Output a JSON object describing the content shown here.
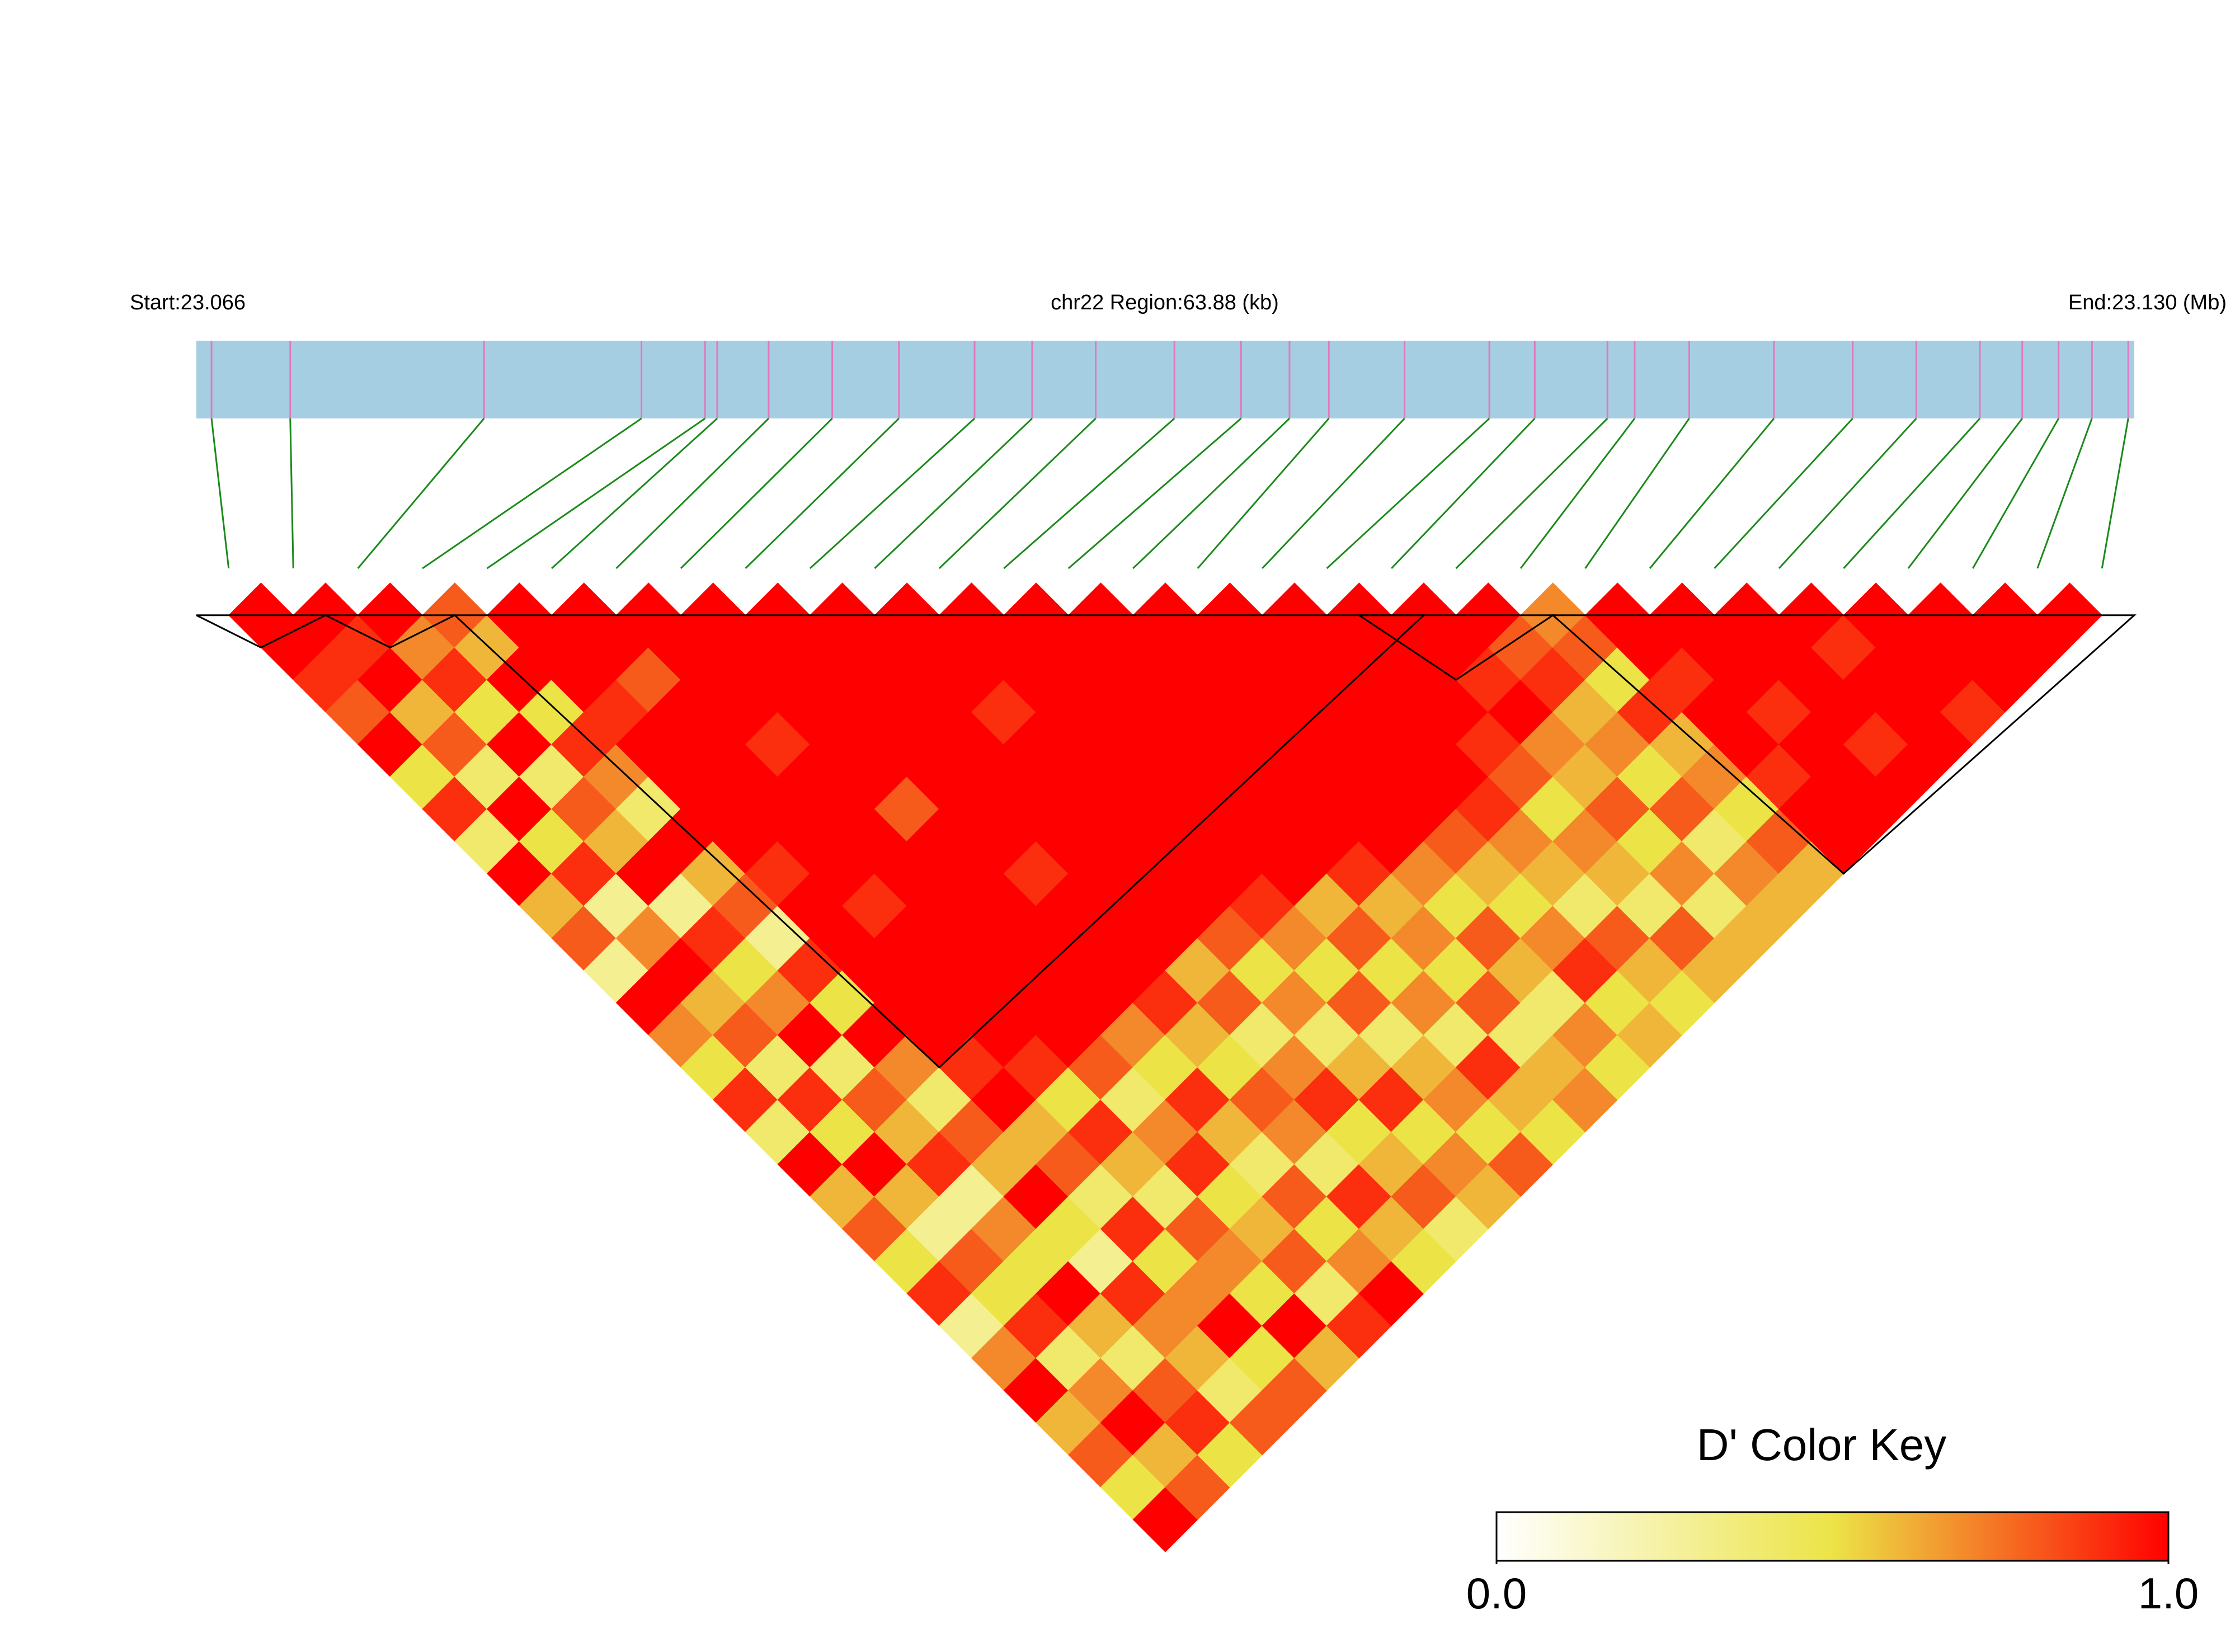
{
  "chart_data": {
    "type": "ld-heatmap",
    "start_label": "Start:23.066",
    "region_label": "chr22 Region:63.88 (kb)",
    "end_label": "End:23.130 (Mb)",
    "key_title": "D' Color Key",
    "xlim": [
      23.066,
      23.13
    ],
    "positions": [
      23.0665,
      23.0691,
      23.0755,
      23.0807,
      23.0828,
      23.0832,
      23.0849,
      23.087,
      23.0892,
      23.0917,
      23.0936,
      23.0957,
      23.0983,
      23.1005,
      23.1021,
      23.1034,
      23.1059,
      23.1087,
      23.1102,
      23.1126,
      23.1135,
      23.1153,
      23.1181,
      23.1207,
      23.1228,
      23.1249,
      23.1263,
      23.1275,
      23.1286,
      23.1298
    ],
    "colors": [
      "#ffffff",
      "#ece447",
      "#ff0000"
    ],
    "key_lim": [
      0,
      1
    ],
    "key_ticks": [
      {
        "value": 0,
        "label": "0.0"
      },
      {
        "value": 1,
        "label": "1.0"
      }
    ],
    "blocks": [
      [
        0,
        1
      ],
      [
        2,
        3
      ],
      [
        4,
        18
      ],
      [
        18,
        20
      ],
      [
        21,
        29
      ]
    ],
    "matrix": [
      [
        1,
        1,
        0.9,
        0.8,
        1,
        0.5,
        0.9,
        0.4,
        1,
        0.6,
        0.8,
        0.3,
        1,
        0.7,
        0.5,
        0.9,
        0.4,
        1,
        0.6,
        0.8,
        0.5,
        0.9,
        0.3,
        0.7,
        1,
        0.6,
        0.8,
        0.5,
        1
      ],
      [
        1,
        0.9,
        1,
        0.6,
        0.8,
        0.4,
        1,
        0.5,
        0.9,
        0.3,
        0.7,
        1,
        0.6,
        0.8,
        0.4,
        0.9,
        0.5,
        1,
        0.6,
        0.3,
        0.8,
        0.5,
        0.9,
        0.4,
        0.7,
        1,
        0.6,
        0.8
      ],
      [
        1,
        0.7,
        0.9,
        0.5,
        1,
        0.4,
        0.8,
        0.6,
        1,
        0.3,
        0.9,
        0.5,
        0.7,
        1,
        0.4,
        0.8,
        0.6,
        0.9,
        0.3,
        0.7,
        0.5,
        1,
        0.6,
        0.4,
        0.8,
        0.9,
        0.5
      ],
      [
        0.8,
        0.6,
        1,
        0.5,
        0.9,
        0.7,
        0.4,
        1,
        0.6,
        0.8,
        0.3,
        0.9,
        0.5,
        1,
        0.7,
        0.4,
        0.8,
        0.6,
        1,
        0.5,
        0.3,
        0.9,
        0.7,
        0.6,
        0.4,
        0.8
      ],
      [
        1,
        1,
        1,
        0.9,
        1,
        1,
        1,
        1,
        0.9,
        1,
        1,
        1,
        1,
        1,
        0.9,
        1,
        0.6,
        0.8,
        0.4,
        0.9,
        0.5,
        0.7,
        1,
        0.5,
        0.8
      ],
      [
        1,
        1,
        0.8,
        1,
        1,
        1,
        1,
        1,
        1,
        0.9,
        1,
        1,
        1,
        1,
        0.9,
        0.5,
        0.9,
        0.6,
        0.4,
        0.8,
        0.7,
        0.5,
        1,
        0.6
      ],
      [
        1,
        1,
        1,
        1,
        0.9,
        1,
        1,
        1,
        1,
        1,
        1,
        1,
        1,
        1,
        0.8,
        0.4,
        0.7,
        0.9,
        0.5,
        0.6,
        0.8,
        0.4,
        0.9
      ],
      [
        1,
        1,
        1,
        1,
        1,
        1,
        0.8,
        1,
        1,
        1,
        1,
        1,
        1,
        0.7,
        0.5,
        0.9,
        0.6,
        0.4,
        0.8,
        0.5,
        0.7,
        1
      ],
      [
        1,
        1,
        1,
        1,
        1,
        1,
        1,
        1,
        0.9,
        1,
        1,
        1,
        0.9,
        0.6,
        0.5,
        0.8,
        0.7,
        0.4,
        0.9,
        0.6,
        0.5
      ],
      [
        1,
        1,
        1,
        1,
        1,
        1,
        1,
        1,
        1,
        1,
        1,
        0.6,
        0.8,
        0.4,
        0.7,
        0.9,
        0.5,
        0.6,
        0.8,
        0.4
      ],
      [
        1,
        1,
        1,
        0.9,
        1,
        1,
        1,
        1,
        1,
        1,
        0.8,
        0.5,
        0.7,
        0.4,
        0.6,
        0.9,
        0.5,
        0.7,
        0.6
      ],
      [
        1,
        1,
        1,
        1,
        1,
        1,
        1,
        1,
        1,
        0.9,
        0.7,
        0.5,
        0.8,
        0.4,
        0.6,
        0.7,
        0.5,
        0.8
      ],
      [
        1,
        1,
        1,
        1,
        1,
        1,
        1,
        1,
        1,
        0.6,
        0.8,
        0.5,
        0.7,
        0.4,
        0.9,
        0.6,
        0.5
      ],
      [
        1,
        1,
        1,
        1,
        1,
        1,
        1,
        1,
        0.9,
        0.6,
        0.7,
        0.5,
        0.8,
        0.4,
        0.6,
        0.7
      ],
      [
        1,
        1,
        1,
        1,
        1,
        1,
        1,
        1,
        0.7,
        0.5,
        0.8,
        0.6,
        0.4,
        0.7,
        0.5
      ],
      [
        1,
        1,
        1,
        1,
        1,
        1,
        1,
        0.8,
        0.6,
        0.5,
        0.7,
        0.9,
        0.5,
        0.6
      ],
      [
        1,
        1,
        1,
        1,
        1,
        1,
        0.9,
        0.7,
        0.6,
        0.4,
        0.8,
        0.6,
        0.5
      ],
      [
        1,
        1,
        1,
        1,
        0.9,
        0.8,
        0.5,
        0.7,
        0.6,
        0.4,
        0.8,
        0.6
      ],
      [
        1,
        1,
        0.9,
        1,
        0.7,
        0.6,
        0.8,
        0.5,
        0.7,
        0.4,
        0.6
      ],
      [
        1,
        0.8,
        0.9,
        0.6,
        0.7,
        0.5,
        0.8,
        0.4,
        0.7,
        0.6
      ],
      [
        0.7,
        0.8,
        0.5,
        0.9,
        0.6,
        0.7,
        0.5,
        0.8,
        0.6
      ],
      [
        1,
        1,
        0.9,
        1,
        1,
        0.9,
        1,
        1
      ],
      [
        1,
        1,
        1,
        0.9,
        1,
        1,
        1
      ],
      [
        1,
        1,
        1,
        1,
        0.9,
        1
      ],
      [
        1,
        0.9,
        1,
        1,
        1
      ],
      [
        1,
        1,
        1,
        0.9
      ],
      [
        1,
        1,
        1
      ],
      [
        1,
        1
      ],
      [
        1
      ]
    ]
  }
}
